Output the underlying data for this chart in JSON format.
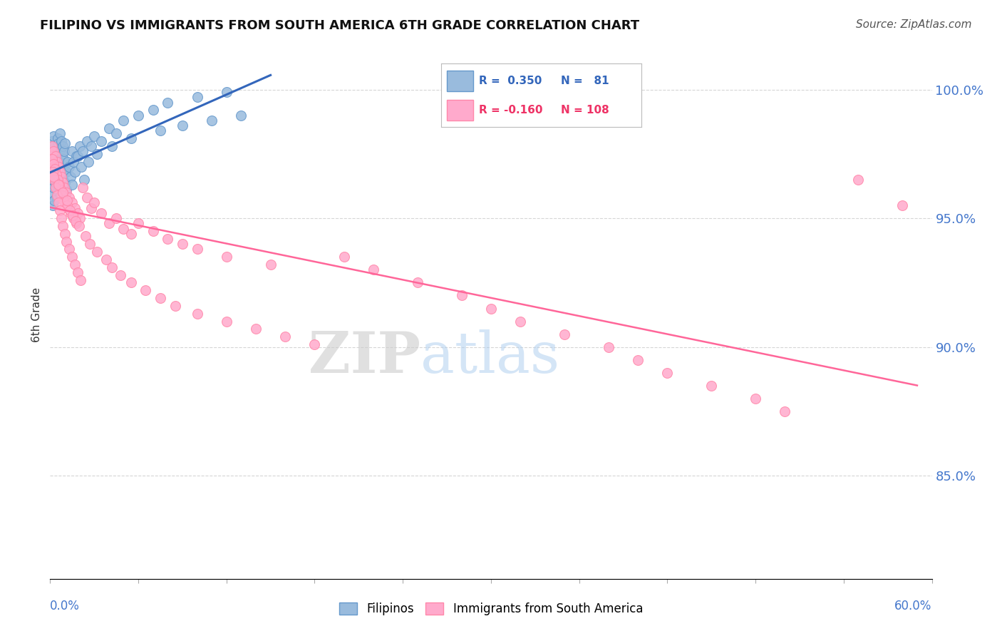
{
  "title": "FILIPINO VS IMMIGRANTS FROM SOUTH AMERICA 6TH GRADE CORRELATION CHART",
  "source": "Source: ZipAtlas.com",
  "ylabel": "6th Grade",
  "x_lim": [
    0.0,
    60.0
  ],
  "y_lim": [
    81.0,
    101.5
  ],
  "y_ticks": [
    85.0,
    90.0,
    95.0,
    100.0
  ],
  "watermark_zip": "ZIP",
  "watermark_atlas": "atlas",
  "blue_color": "#99BBDD",
  "blue_edge": "#6699CC",
  "pink_color": "#FFAACC",
  "pink_edge": "#FF88AA",
  "trend_blue": "#3366BB",
  "trend_pink": "#FF6699",
  "grid_color": "#CCCCCC",
  "tick_color": "#4477CC",
  "title_color": "#111111",
  "source_color": "#555555",
  "legend_r1_color": "#3366BB",
  "legend_r2_color": "#EE3366",
  "scatter_size": 100,
  "blue_points_x": [
    0.1,
    0.15,
    0.2,
    0.25,
    0.3,
    0.35,
    0.4,
    0.45,
    0.5,
    0.55,
    0.6,
    0.65,
    0.7,
    0.75,
    0.8,
    0.85,
    0.9,
    0.95,
    1.0,
    0.12,
    0.18,
    0.22,
    0.28,
    0.32,
    0.42,
    0.52,
    0.62,
    0.72,
    0.82,
    0.92,
    1.2,
    1.5,
    1.8,
    2.0,
    2.5,
    3.0,
    4.0,
    5.0,
    6.0,
    7.0,
    8.0,
    10.0,
    12.0,
    0.15,
    0.25,
    0.35,
    0.45,
    0.55,
    0.65,
    0.75,
    0.85,
    0.95,
    1.1,
    1.3,
    1.6,
    1.9,
    2.2,
    2.8,
    3.5,
    4.5,
    0.2,
    0.4,
    0.6,
    0.8,
    1.0,
    1.4,
    1.7,
    2.1,
    2.6,
    3.2,
    4.2,
    5.5,
    7.5,
    9.0,
    11.0,
    13.0,
    0.3,
    0.7,
    1.1,
    1.5,
    2.3,
    3.8
  ],
  "blue_points_y": [
    97.5,
    98.0,
    97.8,
    98.2,
    97.3,
    97.6,
    97.1,
    97.4,
    98.1,
    97.9,
    97.2,
    98.3,
    97.7,
    98.0,
    97.5,
    97.8,
    97.3,
    97.6,
    97.9,
    96.5,
    96.8,
    96.3,
    96.6,
    96.9,
    96.4,
    96.7,
    97.0,
    96.2,
    96.5,
    96.8,
    97.2,
    97.6,
    97.4,
    97.8,
    98.0,
    98.2,
    98.5,
    98.8,
    99.0,
    99.2,
    99.5,
    99.7,
    99.9,
    96.0,
    96.2,
    96.4,
    96.6,
    96.1,
    96.3,
    96.5,
    96.7,
    96.0,
    96.8,
    97.0,
    97.2,
    97.4,
    97.6,
    97.8,
    98.0,
    98.3,
    95.5,
    95.8,
    96.0,
    96.2,
    96.4,
    96.6,
    96.8,
    97.0,
    97.2,
    97.5,
    97.8,
    98.1,
    98.4,
    98.6,
    98.8,
    99.0,
    95.7,
    95.9,
    96.1,
    96.3,
    96.5,
    96.7
  ],
  "pink_points_x": [
    0.1,
    0.15,
    0.2,
    0.25,
    0.3,
    0.35,
    0.4,
    0.45,
    0.5,
    0.55,
    0.6,
    0.65,
    0.7,
    0.75,
    0.8,
    0.85,
    0.9,
    0.95,
    1.0,
    1.1,
    1.2,
    1.3,
    1.4,
    1.5,
    1.6,
    1.7,
    1.8,
    1.9,
    2.0,
    0.12,
    0.22,
    0.32,
    0.42,
    0.52,
    0.62,
    0.72,
    0.82,
    0.92,
    1.15,
    1.35,
    1.55,
    1.75,
    1.95,
    2.2,
    2.5,
    2.8,
    3.0,
    3.5,
    4.0,
    4.5,
    5.0,
    5.5,
    6.0,
    7.0,
    8.0,
    9.0,
    10.0,
    12.0,
    15.0,
    0.18,
    0.28,
    0.38,
    0.48,
    0.58,
    0.68,
    0.78,
    0.88,
    0.98,
    1.08,
    1.28,
    1.48,
    1.68,
    1.88,
    2.08,
    2.4,
    2.7,
    3.2,
    3.8,
    4.2,
    4.8,
    5.5,
    6.5,
    7.5,
    8.5,
    10.0,
    12.0,
    14.0,
    16.0,
    18.0,
    20.0,
    22.0,
    25.0,
    28.0,
    30.0,
    32.0,
    35.0,
    38.0,
    40.0,
    42.0,
    45.0,
    48.0,
    50.0,
    55.0,
    58.0,
    0.25,
    0.55,
    0.85,
    1.15,
    1.45,
    1.75,
    2.05,
    2.35
  ],
  "pink_points_y": [
    97.5,
    97.8,
    97.2,
    97.6,
    97.0,
    97.4,
    96.8,
    97.2,
    96.6,
    97.0,
    96.4,
    96.8,
    96.2,
    96.6,
    96.0,
    96.4,
    95.8,
    96.2,
    95.6,
    96.0,
    95.4,
    95.8,
    95.2,
    95.6,
    95.0,
    95.4,
    94.8,
    95.2,
    95.0,
    97.3,
    97.1,
    96.9,
    96.7,
    96.5,
    96.3,
    96.1,
    95.9,
    95.7,
    95.5,
    95.3,
    95.1,
    94.9,
    94.7,
    96.2,
    95.8,
    95.4,
    95.6,
    95.2,
    94.8,
    95.0,
    94.6,
    94.4,
    94.8,
    94.5,
    94.2,
    94.0,
    93.8,
    93.5,
    93.2,
    96.8,
    96.5,
    96.2,
    95.9,
    95.6,
    95.3,
    95.0,
    94.7,
    94.4,
    94.1,
    93.8,
    93.5,
    93.2,
    92.9,
    92.6,
    94.3,
    94.0,
    93.7,
    93.4,
    93.1,
    92.8,
    92.5,
    92.2,
    91.9,
    91.6,
    91.3,
    91.0,
    90.7,
    90.4,
    90.1,
    93.5,
    93.0,
    92.5,
    92.0,
    91.5,
    91.0,
    90.5,
    90.0,
    89.5,
    89.0,
    88.5,
    88.0,
    87.5,
    96.5,
    95.5,
    96.6,
    96.3,
    96.0,
    95.7,
    95.4,
    95.1,
    94.8,
    94.5
  ]
}
